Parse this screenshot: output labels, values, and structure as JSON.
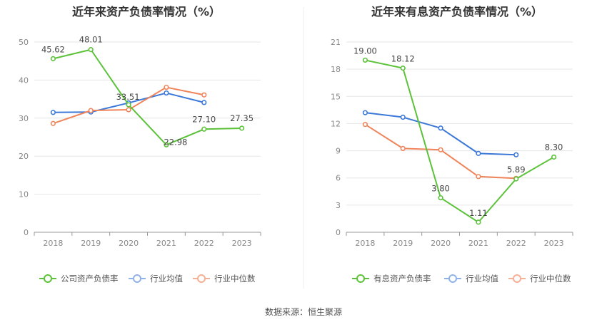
{
  "source_text": "数据来源：恒生聚源",
  "chart_data": [
    {
      "type": "line",
      "title": "近年来资产负债率情况（%）",
      "categories": [
        "2018",
        "2019",
        "2020",
        "2021",
        "2022",
        "2023"
      ],
      "ylim": [
        0,
        50
      ],
      "yticks": [
        "0",
        "10",
        "20",
        "30",
        "40",
        "50"
      ],
      "grid": true,
      "legend_position": "bottom",
      "series": [
        {
          "name": "公司资产负债率",
          "color": "#5cc23a",
          "values": [
            45.62,
            48.01,
            33.51,
            22.98,
            27.1,
            27.35
          ],
          "labels": [
            "45.62",
            "48.01",
            "33.51",
            "22.98",
            "27.10",
            "27.35"
          ]
        },
        {
          "name": "行业均值",
          "color": "#3c78d8",
          "values": [
            31.5,
            31.6,
            34.0,
            36.6,
            34.1,
            null
          ]
        },
        {
          "name": "行业中位数",
          "color": "#f0845a",
          "values": [
            28.6,
            32.0,
            32.2,
            38.1,
            36.1,
            null
          ]
        }
      ]
    },
    {
      "type": "line",
      "title": "近年来有息资产负债率情况（%）",
      "categories": [
        "2018",
        "2019",
        "2020",
        "2021",
        "2022",
        "2023"
      ],
      "ylim": [
        0,
        21
      ],
      "yticks": [
        "0",
        "3",
        "6",
        "9",
        "12",
        "15",
        "18",
        "21"
      ],
      "grid": true,
      "legend_position": "bottom",
      "series": [
        {
          "name": "有息资产负债率",
          "color": "#5cc23a",
          "values": [
            19.0,
            18.12,
            3.8,
            1.11,
            5.89,
            8.3
          ],
          "labels": [
            "19.00",
            "18.12",
            "3.80",
            "1.11",
            "5.89",
            "8.30"
          ]
        },
        {
          "name": "行业均值",
          "color": "#3c78d8",
          "values": [
            13.2,
            12.7,
            11.5,
            8.7,
            8.55,
            null
          ]
        },
        {
          "name": "行业中位数",
          "color": "#f0845a",
          "values": [
            11.9,
            9.25,
            9.1,
            6.15,
            5.95,
            null
          ]
        }
      ]
    }
  ]
}
